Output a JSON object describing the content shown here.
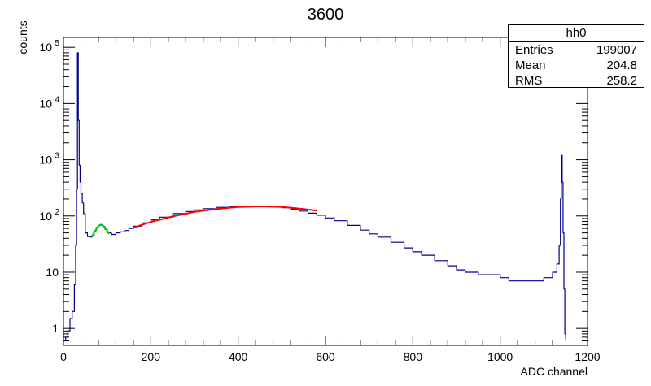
{
  "chart_data": {
    "type": "line",
    "title": "3600",
    "xlabel": "ADC channel",
    "ylabel": "counts",
    "xlim": [
      0,
      1200
    ],
    "ylim": [
      0.5,
      150000
    ],
    "yscale": "log",
    "x_ticks": [
      "0",
      "200",
      "400",
      "600",
      "800",
      "1000",
      "1200"
    ],
    "y_ticks": [
      {
        "value": 1,
        "label": "1"
      },
      {
        "value": 10,
        "label": "10"
      },
      {
        "value": 100,
        "base": "10",
        "exp": "2"
      },
      {
        "value": 1000,
        "base": "10",
        "exp": "3"
      },
      {
        "value": 10000,
        "base": "10",
        "exp": "4"
      },
      {
        "value": 100000,
        "base": "10",
        "exp": "5"
      }
    ],
    "series": [
      {
        "color": "#00008b",
        "style": "histogram",
        "x": [
          0,
          5,
          10,
          15,
          20,
          25,
          28,
          30,
          32,
          34,
          36,
          38,
          40,
          43,
          46,
          50,
          55,
          60,
          65,
          70,
          75,
          80,
          85,
          90,
          95,
          100,
          110,
          120,
          130,
          140,
          150,
          160,
          180,
          200,
          220,
          250,
          280,
          300,
          320,
          350,
          380,
          400,
          420,
          440,
          460,
          480,
          500,
          520,
          540,
          560,
          580,
          600,
          620,
          650,
          680,
          700,
          720,
          750,
          780,
          800,
          820,
          850,
          880,
          900,
          920,
          950,
          980,
          1000,
          1020,
          1040,
          1060,
          1080,
          1100,
          1110,
          1120,
          1130,
          1135,
          1138,
          1140,
          1142,
          1144,
          1146,
          1148,
          1150
        ],
        "y": [
          0.6,
          0.7,
          0.9,
          1.5,
          2,
          6,
          30,
          300,
          80000,
          5000,
          800,
          400,
          250,
          170,
          110,
          50,
          43,
          42,
          45,
          55,
          62,
          68,
          70,
          65,
          58,
          50,
          47,
          50,
          52,
          55,
          60,
          66,
          75,
          85,
          95,
          110,
          120,
          128,
          135,
          142,
          148,
          150,
          150,
          150,
          148,
          145,
          140,
          132,
          122,
          112,
          103,
          92,
          82,
          68,
          56,
          48,
          42,
          34,
          27,
          23,
          20,
          16,
          13,
          11,
          10,
          9,
          9,
          8,
          7,
          7,
          7,
          7,
          8,
          8,
          10,
          14,
          30,
          200,
          1200,
          400,
          50,
          5,
          0.8,
          0.6
        ]
      },
      {
        "color": "#00c800",
        "style": "fit",
        "x": [
          65,
          70,
          75,
          80,
          85,
          90,
          95,
          100,
          105
        ],
        "y": [
          43,
          50,
          58,
          66,
          70,
          68,
          62,
          55,
          48
        ]
      },
      {
        "color": "#ff0000",
        "style": "fit",
        "x": [
          160,
          200,
          250,
          300,
          350,
          400,
          450,
          500,
          550,
          580
        ],
        "y": [
          62,
          78,
          98,
          118,
          133,
          144,
          148,
          145,
          133,
          124
        ]
      }
    ]
  },
  "stats_box": {
    "title": "hh0",
    "rows": [
      {
        "label": "Entries",
        "value": "199007"
      },
      {
        "label": "Mean",
        "value": "204.8"
      },
      {
        "label": "RMS",
        "value": "258.2"
      }
    ]
  }
}
